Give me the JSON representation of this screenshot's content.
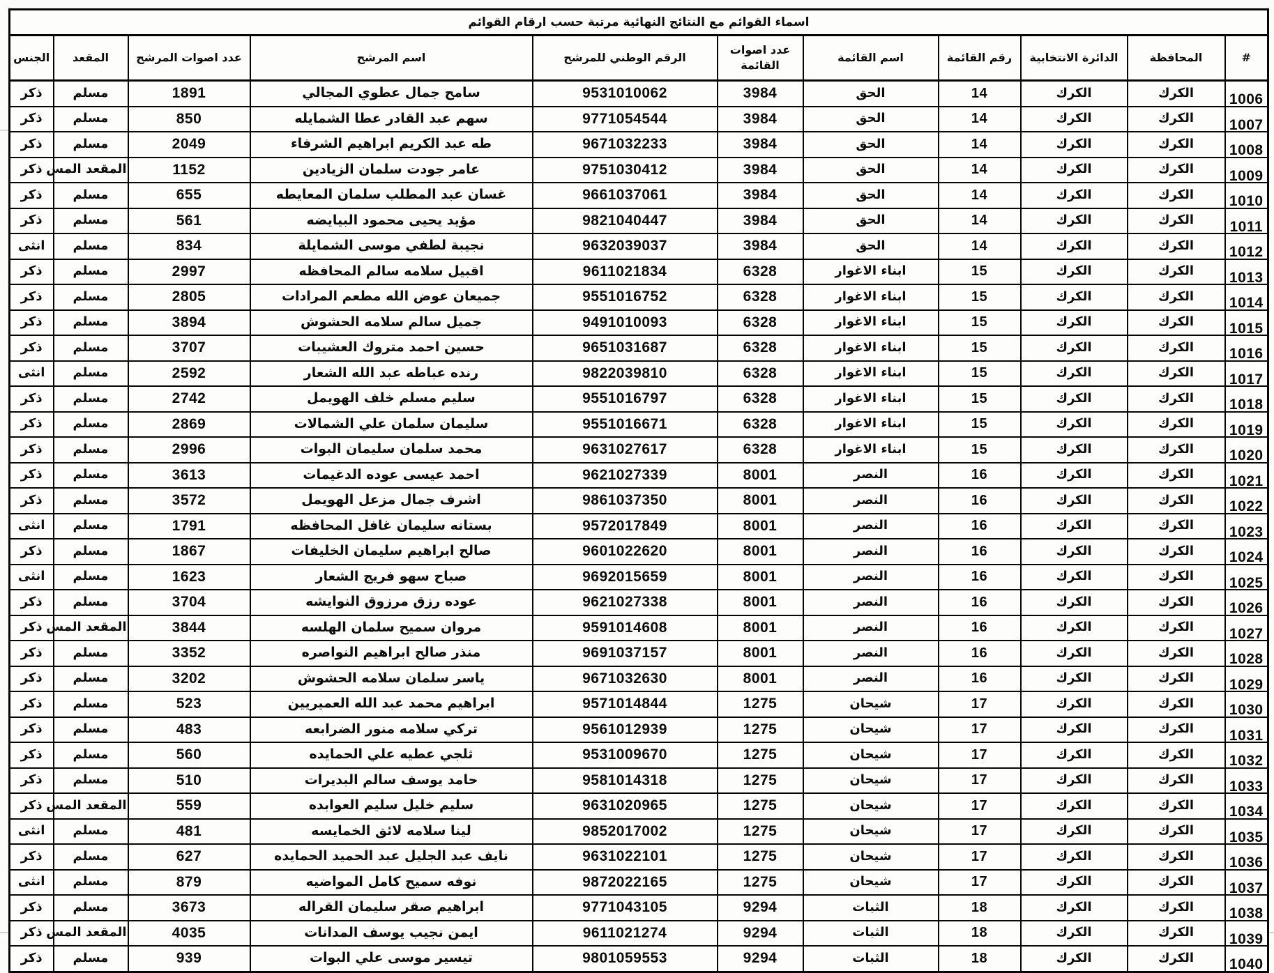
{
  "page": {
    "title": "اسماء القوائم مع النتائج النهائية مرتبة حسب ارقام القوائم"
  },
  "table": {
    "columns": [
      "#",
      "المحافظة",
      "الدائرة الانتخابية",
      "رقم القائمة",
      "اسم القائمة",
      "عدد اصوات القائمة",
      "الرقم الوطني للمرشح",
      "اسم المرشح",
      "عدد اصوات المرشح",
      "المقعد",
      "الجنس"
    ],
    "rows": [
      {
        "serial": "1006",
        "governorate": "الكرك",
        "district": "الكرك",
        "list_number": "14",
        "list_name": "الحق",
        "list_votes": "3984",
        "national_id": "9531010062",
        "candidate_name": "سامح جمال عطوي المجالي",
        "candidate_votes": "1891",
        "seat": "مسلم",
        "gender": "ذكر"
      },
      {
        "serial": "1007",
        "governorate": "الكرك",
        "district": "الكرك",
        "list_number": "14",
        "list_name": "الحق",
        "list_votes": "3984",
        "national_id": "9771054544",
        "candidate_name": "سهم عبد القادر عطا الشمايله",
        "candidate_votes": "850",
        "seat": "مسلم",
        "gender": "ذكر"
      },
      {
        "serial": "1008",
        "governorate": "الكرك",
        "district": "الكرك",
        "list_number": "14",
        "list_name": "الحق",
        "list_votes": "3984",
        "national_id": "9671032233",
        "candidate_name": "طه عبد الكريم ابراهيم الشرفاء",
        "candidate_votes": "2049",
        "seat": "مسلم",
        "gender": "ذكر"
      },
      {
        "serial": "1009",
        "governorate": "الكرك",
        "district": "الكرك",
        "list_number": "14",
        "list_name": "الحق",
        "list_votes": "3984",
        "national_id": "9751030412",
        "candidate_name": "عامر جودت سلمان الزيادين",
        "candidate_votes": "1152",
        "seat": "المقعد المس",
        "gender": "ذكر"
      },
      {
        "serial": "1010",
        "governorate": "الكرك",
        "district": "الكرك",
        "list_number": "14",
        "list_name": "الحق",
        "list_votes": "3984",
        "national_id": "9661037061",
        "candidate_name": "غسان عبد المطلب سلمان المعايطه",
        "candidate_votes": "655",
        "seat": "مسلم",
        "gender": "ذكر"
      },
      {
        "serial": "1011",
        "governorate": "الكرك",
        "district": "الكرك",
        "list_number": "14",
        "list_name": "الحق",
        "list_votes": "3984",
        "national_id": "9821040447",
        "candidate_name": "مؤيد يحيى محمود البيايضه",
        "candidate_votes": "561",
        "seat": "مسلم",
        "gender": "ذكر"
      },
      {
        "serial": "1012",
        "governorate": "الكرك",
        "district": "الكرك",
        "list_number": "14",
        "list_name": "الحق",
        "list_votes": "3984",
        "national_id": "9632039037",
        "candidate_name": "نجيبة لطفي موسى الشمايلة",
        "candidate_votes": "834",
        "seat": "مسلم",
        "gender": "انثى"
      },
      {
        "serial": "1013",
        "governorate": "الكرك",
        "district": "الكرك",
        "list_number": "15",
        "list_name": "ابناء الاغوار",
        "list_votes": "6328",
        "national_id": "9611021834",
        "candidate_name": "اقبيل سلامه سالم المحافظه",
        "candidate_votes": "2997",
        "seat": "مسلم",
        "gender": "ذكر"
      },
      {
        "serial": "1014",
        "governorate": "الكرك",
        "district": "الكرك",
        "list_number": "15",
        "list_name": "ابناء الاغوار",
        "list_votes": "6328",
        "national_id": "9551016752",
        "candidate_name": "جميعان عوض الله مطعم المرادات",
        "candidate_votes": "2805",
        "seat": "مسلم",
        "gender": "ذكر"
      },
      {
        "serial": "1015",
        "governorate": "الكرك",
        "district": "الكرك",
        "list_number": "15",
        "list_name": "ابناء الاغوار",
        "list_votes": "6328",
        "national_id": "9491010093",
        "candidate_name": "جميل سالم سلامه الحشوش",
        "candidate_votes": "3894",
        "seat": "مسلم",
        "gender": "ذكر"
      },
      {
        "serial": "1016",
        "governorate": "الكرك",
        "district": "الكرك",
        "list_number": "15",
        "list_name": "ابناء الاغوار",
        "list_votes": "6328",
        "national_id": "9651031687",
        "candidate_name": "حسين احمد متروك العشيبات",
        "candidate_votes": "3707",
        "seat": "مسلم",
        "gender": "ذكر"
      },
      {
        "serial": "1017",
        "governorate": "الكرك",
        "district": "الكرك",
        "list_number": "15",
        "list_name": "ابناء الاغوار",
        "list_votes": "6328",
        "national_id": "9822039810",
        "candidate_name": "رنده عباطه عبد الله الشعار",
        "candidate_votes": "2592",
        "seat": "مسلم",
        "gender": "انثى"
      },
      {
        "serial": "1018",
        "governorate": "الكرك",
        "district": "الكرك",
        "list_number": "15",
        "list_name": "ابناء الاغوار",
        "list_votes": "6328",
        "national_id": "9551016797",
        "candidate_name": "سليم مسلم خلف الهويمل",
        "candidate_votes": "2742",
        "seat": "مسلم",
        "gender": "ذكر"
      },
      {
        "serial": "1019",
        "governorate": "الكرك",
        "district": "الكرك",
        "list_number": "15",
        "list_name": "ابناء الاغوار",
        "list_votes": "6328",
        "national_id": "9551016671",
        "candidate_name": "سليمان سلمان علي الشمالات",
        "candidate_votes": "2869",
        "seat": "مسلم",
        "gender": "ذكر"
      },
      {
        "serial": "1020",
        "governorate": "الكرك",
        "district": "الكرك",
        "list_number": "15",
        "list_name": "ابناء الاغوار",
        "list_votes": "6328",
        "national_id": "9631027617",
        "candidate_name": "محمد سلمان سليمان البوات",
        "candidate_votes": "2996",
        "seat": "مسلم",
        "gender": "ذكر"
      },
      {
        "serial": "1021",
        "governorate": "الكرك",
        "district": "الكرك",
        "list_number": "16",
        "list_name": "النصر",
        "list_votes": "8001",
        "national_id": "9621027339",
        "candidate_name": "احمد عيسى عوده الدغيمات",
        "candidate_votes": "3613",
        "seat": "مسلم",
        "gender": "ذكر"
      },
      {
        "serial": "1022",
        "governorate": "الكرك",
        "district": "الكرك",
        "list_number": "16",
        "list_name": "النصر",
        "list_votes": "8001",
        "national_id": "9861037350",
        "candidate_name": "اشرف جمال مزعل الهويمل",
        "candidate_votes": "3572",
        "seat": "مسلم",
        "gender": "ذكر"
      },
      {
        "serial": "1023",
        "governorate": "الكرك",
        "district": "الكرك",
        "list_number": "16",
        "list_name": "النصر",
        "list_votes": "8001",
        "national_id": "9572017849",
        "candidate_name": "بستانه سليمان غافل المحافظه",
        "candidate_votes": "1791",
        "seat": "مسلم",
        "gender": "انثى"
      },
      {
        "serial": "1024",
        "governorate": "الكرك",
        "district": "الكرك",
        "list_number": "16",
        "list_name": "النصر",
        "list_votes": "8001",
        "national_id": "9601022620",
        "candidate_name": "صالح ابراهيم سليمان الخليفات",
        "candidate_votes": "1867",
        "seat": "مسلم",
        "gender": "ذكر"
      },
      {
        "serial": "1025",
        "governorate": "الكرك",
        "district": "الكرك",
        "list_number": "16",
        "list_name": "النصر",
        "list_votes": "8001",
        "national_id": "9692015659",
        "candidate_name": "صباح سهو فريج الشعار",
        "candidate_votes": "1623",
        "seat": "مسلم",
        "gender": "انثى"
      },
      {
        "serial": "1026",
        "governorate": "الكرك",
        "district": "الكرك",
        "list_number": "16",
        "list_name": "النصر",
        "list_votes": "8001",
        "national_id": "9621027338",
        "candidate_name": "عوده رزق مرزوق النوايشه",
        "candidate_votes": "3704",
        "seat": "مسلم",
        "gender": "ذكر"
      },
      {
        "serial": "1027",
        "governorate": "الكرك",
        "district": "الكرك",
        "list_number": "16",
        "list_name": "النصر",
        "list_votes": "8001",
        "national_id": "9591014608",
        "candidate_name": "مروان سميح سلمان الهلسه",
        "candidate_votes": "3844",
        "seat": "المقعد المس",
        "gender": "ذكر"
      },
      {
        "serial": "1028",
        "governorate": "الكرك",
        "district": "الكرك",
        "list_number": "16",
        "list_name": "النصر",
        "list_votes": "8001",
        "national_id": "9691037157",
        "candidate_name": "منذر صالح ابراهيم النواصره",
        "candidate_votes": "3352",
        "seat": "مسلم",
        "gender": "ذكر"
      },
      {
        "serial": "1029",
        "governorate": "الكرك",
        "district": "الكرك",
        "list_number": "16",
        "list_name": "النصر",
        "list_votes": "8001",
        "national_id": "9671032630",
        "candidate_name": "ياسر سلمان سلامه الحشوش",
        "candidate_votes": "3202",
        "seat": "مسلم",
        "gender": "ذكر"
      },
      {
        "serial": "1030",
        "governorate": "الكرك",
        "district": "الكرك",
        "list_number": "17",
        "list_name": "شيحان",
        "list_votes": "1275",
        "national_id": "9571014844",
        "candidate_name": "ابراهيم محمد عبد الله العميريين",
        "candidate_votes": "523",
        "seat": "مسلم",
        "gender": "ذكر"
      },
      {
        "serial": "1031",
        "governorate": "الكرك",
        "district": "الكرك",
        "list_number": "17",
        "list_name": "شيحان",
        "list_votes": "1275",
        "national_id": "9561012939",
        "candidate_name": "تركي سلامه منور الضرابعه",
        "candidate_votes": "483",
        "seat": "مسلم",
        "gender": "ذكر"
      },
      {
        "serial": "1032",
        "governorate": "الكرك",
        "district": "الكرك",
        "list_number": "17",
        "list_name": "شيحان",
        "list_votes": "1275",
        "national_id": "9531009670",
        "candidate_name": "ثلجي عطيه علي الحمايده",
        "candidate_votes": "560",
        "seat": "مسلم",
        "gender": "ذكر"
      },
      {
        "serial": "1033",
        "governorate": "الكرك",
        "district": "الكرك",
        "list_number": "17",
        "list_name": "شيحان",
        "list_votes": "1275",
        "national_id": "9581014318",
        "candidate_name": "حامد يوسف سالم البديرات",
        "candidate_votes": "510",
        "seat": "مسلم",
        "gender": "ذكر"
      },
      {
        "serial": "1034",
        "governorate": "الكرك",
        "district": "الكرك",
        "list_number": "17",
        "list_name": "شيحان",
        "list_votes": "1275",
        "national_id": "9631020965",
        "candidate_name": "سليم خليل سليم العوابده",
        "candidate_votes": "559",
        "seat": "المقعد المس",
        "gender": "ذكر"
      },
      {
        "serial": "1035",
        "governorate": "الكرك",
        "district": "الكرك",
        "list_number": "17",
        "list_name": "شيحان",
        "list_votes": "1275",
        "national_id": "9852017002",
        "candidate_name": "لينا سلامه لائق الخمايسه",
        "candidate_votes": "481",
        "seat": "مسلم",
        "gender": "انثى"
      },
      {
        "serial": "1036",
        "governorate": "الكرك",
        "district": "الكرك",
        "list_number": "17",
        "list_name": "شيحان",
        "list_votes": "1275",
        "national_id": "9631022101",
        "candidate_name": "نايف عبد الجليل عبد الحميد الحمايده",
        "candidate_votes": "627",
        "seat": "مسلم",
        "gender": "ذكر"
      },
      {
        "serial": "1037",
        "governorate": "الكرك",
        "district": "الكرك",
        "list_number": "17",
        "list_name": "شيحان",
        "list_votes": "1275",
        "national_id": "9872022165",
        "candidate_name": "نوفه سميح كامل المواضيه",
        "candidate_votes": "879",
        "seat": "مسلم",
        "gender": "انثى"
      },
      {
        "serial": "1038",
        "governorate": "الكرك",
        "district": "الكرك",
        "list_number": "18",
        "list_name": "الثبات",
        "list_votes": "9294",
        "national_id": "9771043105",
        "candidate_name": "ابراهيم صقر سليمان القراله",
        "candidate_votes": "3673",
        "seat": "مسلم",
        "gender": "ذكر"
      },
      {
        "serial": "1039",
        "governorate": "الكرك",
        "district": "الكرك",
        "list_number": "18",
        "list_name": "الثبات",
        "list_votes": "9294",
        "national_id": "9611021274",
        "candidate_name": "ايمن نجيب يوسف المدانات",
        "candidate_votes": "4035",
        "seat": "المقعد المس",
        "gender": "ذكر"
      },
      {
        "serial": "1040",
        "governorate": "الكرك",
        "district": "الكرك",
        "list_number": "18",
        "list_name": "الثبات",
        "list_votes": "9294",
        "national_id": "9801059553",
        "candidate_name": "تيسير موسى علي البوات",
        "candidate_votes": "939",
        "seat": "مسلم",
        "gender": "ذكر"
      }
    ]
  }
}
